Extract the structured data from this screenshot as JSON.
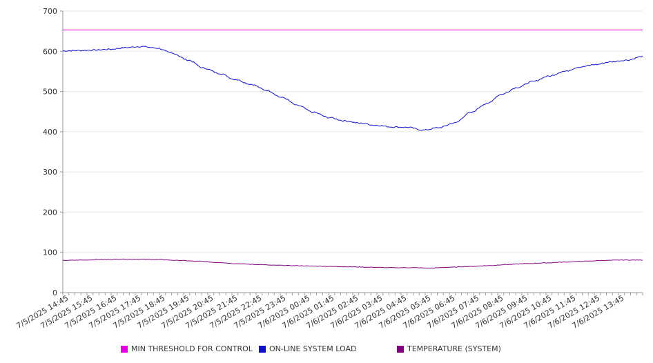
{
  "chart_data": {
    "type": "line",
    "title": "",
    "xlabel": "",
    "ylabel": "",
    "ylim": [
      0,
      700
    ],
    "y_ticks": [
      "0",
      "100",
      "200",
      "300",
      "400",
      "500",
      "600",
      "700"
    ],
    "grid": true,
    "legend_position": "bottom",
    "x_interval_minutes": 15,
    "x_tick_labels": [
      "7/5/2025 14:45",
      "7/5/2025 15:45",
      "7/5/2025 16:45",
      "7/5/2025 17:45",
      "7/5/2025 18:45",
      "7/5/2025 19:45",
      "7/5/2025 20:45",
      "7/5/2025 21:45",
      "7/5/2025 22:45",
      "7/5/2025 23:45",
      "7/6/2025 00:45",
      "7/6/2025 01:45",
      "7/6/2025 02:45",
      "7/6/2025 03:45",
      "7/6/2025 04:45",
      "7/6/2025 05:45",
      "7/6/2025 06:45",
      "7/6/2025 07:45",
      "7/6/2025 08:45",
      "7/6/2025 09:45",
      "7/6/2025 10:45",
      "7/6/2025 11:45",
      "7/6/2025 12:45",
      "7/6/2025 13:45"
    ],
    "series": [
      {
        "name": "MIN THRESHOLD FOR CONTROL",
        "color": "#e000e0",
        "values": [
          653,
          653
        ]
      },
      {
        "name": "ON-LINE SYSTEM LOAD",
        "color": "#1010c8",
        "values": [
          601,
          602,
          603,
          605,
          609,
          612,
          608,
          595,
          578,
          558,
          545,
          530,
          518,
          503,
          485,
          465,
          448,
          435,
          427,
          421,
          416,
          412,
          411,
          404,
          410,
          422,
          447,
          469,
          493,
          510,
          525,
          538,
          550,
          561,
          567,
          574,
          578,
          587
        ]
      },
      {
        "name": "TEMPERATURE (SYSTEM)",
        "color": "#800080",
        "values": [
          80,
          81,
          82,
          83,
          83,
          82,
          80,
          78,
          75,
          72,
          70,
          68,
          67,
          66,
          65,
          64,
          63,
          62,
          62,
          61,
          63,
          65,
          67,
          70,
          72,
          74,
          76,
          78,
          80,
          81,
          81
        ]
      }
    ]
  }
}
